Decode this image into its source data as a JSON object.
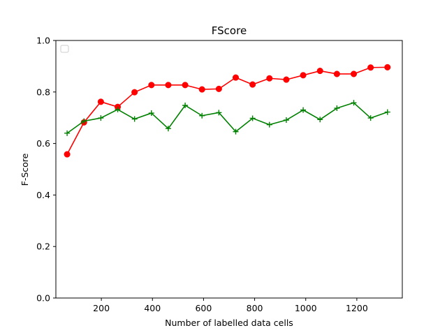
{
  "chart_data": {
    "type": "line",
    "title": "FScore",
    "xlabel": "Number of labelled data cells",
    "ylabel": "F-Score",
    "xlim": [
      22,
      1378
    ],
    "ylim": [
      0,
      1.0
    ],
    "xticks": [
      200,
      400,
      600,
      800,
      1000,
      1200
    ],
    "yticks": [
      0.0,
      0.2,
      0.4,
      0.6,
      0.8,
      1.0
    ],
    "ytick_labels": [
      "0.0",
      "0.2",
      "0.4",
      "0.6",
      "0.8",
      "1.0"
    ],
    "grid": false,
    "legend": {
      "placement": "top-left",
      "entries": []
    },
    "x": [
      66,
      132,
      198,
      264,
      330,
      396,
      462,
      528,
      594,
      660,
      726,
      792,
      858,
      924,
      990,
      1056,
      1122,
      1188,
      1254,
      1320
    ],
    "series": [
      {
        "color": "#ff0000",
        "marker": "circle",
        "values": [
          0.558,
          0.682,
          0.762,
          0.742,
          0.799,
          0.827,
          0.827,
          0.827,
          0.81,
          0.812,
          0.856,
          0.829,
          0.853,
          0.848,
          0.865,
          0.882,
          0.87,
          0.87,
          0.895,
          0.896
        ]
      },
      {
        "color": "#008000",
        "marker": "plus",
        "values": [
          0.64,
          0.687,
          0.699,
          0.732,
          0.695,
          0.718,
          0.658,
          0.748,
          0.708,
          0.72,
          0.646,
          0.698,
          0.673,
          0.691,
          0.73,
          0.693,
          0.737,
          0.758,
          0.699,
          0.722
        ]
      }
    ]
  }
}
